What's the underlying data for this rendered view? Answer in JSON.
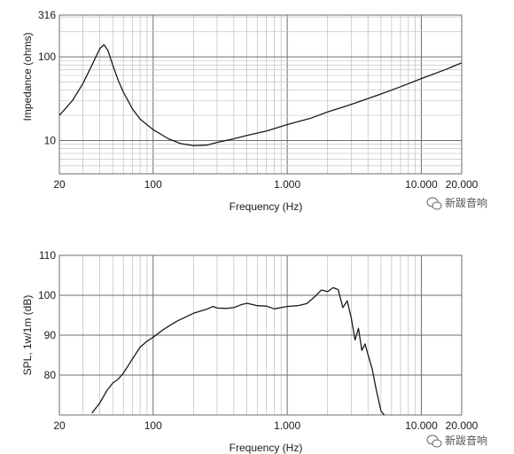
{
  "watermark": {
    "text": "新跋音响",
    "icon": "wechat-icon"
  },
  "chart_data": [
    {
      "type": "line",
      "title": "",
      "xlabel": "Frequency (Hz)",
      "ylabel": "Impedance (ohms)",
      "xscale": "log",
      "yscale": "log",
      "xlim": [
        20,
        20000
      ],
      "ylim": [
        1,
        316
      ],
      "grid": true,
      "x_ticks": [
        {
          "value": 20,
          "label": "20"
        },
        {
          "value": 100,
          "label": "100"
        },
        {
          "value": 1000,
          "label": "1.000"
        },
        {
          "value": 10000,
          "label": "10.000"
        },
        {
          "value": 20000,
          "label": "20.000"
        }
      ],
      "y_ticks": [
        {
          "value": 316,
          "label": "316"
        },
        {
          "value": 100,
          "label": "100"
        },
        {
          "value": 10,
          "label": "10"
        }
      ],
      "series": [
        {
          "name": "",
          "color": "#1a1a1a",
          "x": [
            20,
            25,
            30,
            35,
            40,
            43,
            46,
            50,
            55,
            60,
            70,
            80,
            100,
            130,
            160,
            200,
            250,
            300,
            400,
            500,
            700,
            1000,
            1500,
            2000,
            3000,
            5000,
            7000,
            10000,
            15000,
            20000
          ],
          "y": [
            20,
            30,
            48,
            80,
            125,
            140,
            120,
            80,
            52,
            38,
            24,
            18,
            13.5,
            10.5,
            9.2,
            8.7,
            8.8,
            9.5,
            10.5,
            11.5,
            13,
            15.5,
            18.5,
            22,
            27,
            36,
            44,
            55,
            70,
            85
          ]
        }
      ]
    },
    {
      "type": "line",
      "title": "",
      "xlabel": "Frequency (Hz)",
      "ylabel": "SPL, 1w/1m (dB)",
      "xscale": "log",
      "xlim": [
        20,
        20000
      ],
      "ylim": [
        70,
        110
      ],
      "grid": true,
      "x_ticks": [
        {
          "value": 20,
          "label": "20"
        },
        {
          "value": 100,
          "label": "100"
        },
        {
          "value": 1000,
          "label": "1.000"
        },
        {
          "value": 10000,
          "label": "10.000"
        },
        {
          "value": 20000,
          "label": "20.000"
        }
      ],
      "y_ticks": [
        {
          "value": 110,
          "label": "110"
        },
        {
          "value": 100,
          "label": "100"
        },
        {
          "value": 90,
          "label": "90"
        },
        {
          "value": 80,
          "label": "80"
        }
      ],
      "series": [
        {
          "name": "",
          "color": "#1a1a1a",
          "x": [
            35,
            40,
            45,
            50,
            55,
            60,
            70,
            80,
            90,
            100,
            120,
            150,
            200,
            250,
            280,
            300,
            350,
            400,
            450,
            500,
            600,
            700,
            800,
            900,
            1000,
            1200,
            1400,
            1600,
            1800,
            2000,
            2200,
            2400,
            2600,
            2800,
            3000,
            3200,
            3400,
            3600,
            3800,
            4000,
            4300,
            4600,
            5000,
            5300
          ],
          "y": [
            70.5,
            73,
            76,
            78,
            79,
            80.5,
            84,
            87,
            88.5,
            89.5,
            91.5,
            93.5,
            95.5,
            96.5,
            97.2,
            96.8,
            96.7,
            96.9,
            97.6,
            98,
            97.4,
            97.3,
            96.6,
            96.9,
            97.2,
            97.4,
            97.9,
            99.6,
            101.3,
            100.9,
            101.9,
            101.4,
            96.9,
            98.6,
            94.4,
            88.8,
            91.7,
            86.2,
            87.8,
            85.2,
            81.5,
            76.5,
            71,
            70
          ]
        }
      ]
    }
  ]
}
